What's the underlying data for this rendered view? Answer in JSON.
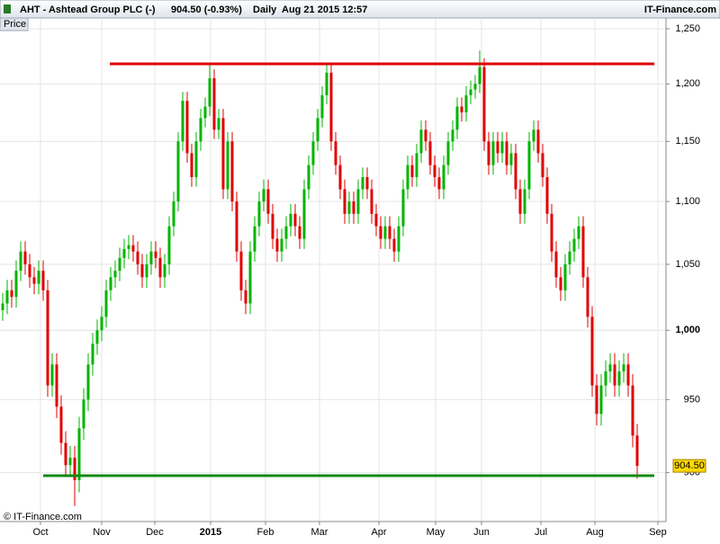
{
  "chart_data": {
    "type": "candlestick",
    "title": "AHT - Ashtead Group PLC (-)",
    "subtitle": "904.50 (-0.93%)",
    "period": "Daily  Aug 21 2015 12:57",
    "brand": "IT-Finance.com",
    "panel_label": "Price",
    "footer": "© IT-Finance.com",
    "log_scale": true,
    "grid": true,
    "up_color": "#00b400",
    "down_color": "#e00000",
    "xlim": [
      -0.6,
      147.4
    ],
    "ylim": [
      868,
      1260
    ],
    "xticks": [
      {
        "value": 8.4,
        "label": "Oct"
      },
      {
        "value": 22,
        "label": "Nov"
      },
      {
        "value": 33.8,
        "label": "Dec"
      },
      {
        "value": 46.2,
        "label": "2015",
        "bold": true
      },
      {
        "value": 58.4,
        "label": "Feb"
      },
      {
        "value": 70.4,
        "label": "Mar"
      },
      {
        "value": 83.6,
        "label": "Apr"
      },
      {
        "value": 96.2,
        "label": "May"
      },
      {
        "value": 106.4,
        "label": "Jun"
      },
      {
        "value": 119.6,
        "label": "Jul"
      },
      {
        "value": 131.6,
        "label": "Aug"
      },
      {
        "value": 145.6,
        "label": "Sep"
      }
    ],
    "yticks": [
      900,
      950,
      {
        "value": 1000,
        "label": "1,000",
        "bold": true
      },
      {
        "value": 1050,
        "label": "1,050"
      },
      {
        "value": 1100,
        "label": "1,100"
      },
      {
        "value": 1150,
        "label": "1,150"
      },
      {
        "value": 1200,
        "label": "1,200"
      },
      {
        "value": 1250,
        "label": "1,250"
      }
    ],
    "last_price": {
      "value": 904.5,
      "label": "904.50"
    },
    "lines": [
      {
        "value": 1218,
        "color": "#e00000",
        "x": [
          23.8,
          144.8
        ]
      },
      {
        "value": 898,
        "color": "#118811",
        "x": [
          9,
          144.8
        ]
      }
    ],
    "candles": {
      "open": [
        1015,
        1020,
        1030,
        1025,
        1045,
        1060,
        1050,
        1040,
        1035,
        1045,
        1030,
        960,
        975,
        945,
        920,
        905,
        910,
        895,
        930,
        950,
        975,
        990,
        1000,
        1010,
        1030,
        1040,
        1045,
        1055,
        1062,
        1065,
        1060,
        1050,
        1040,
        1050,
        1060,
        1055,
        1040,
        1050,
        1080,
        1100,
        1150,
        1185,
        1140,
        1120,
        1150,
        1170,
        1180,
        1205,
        1160,
        1170,
        1110,
        1150,
        1100,
        1060,
        1030,
        1020,
        1060,
        1080,
        1100,
        1110,
        1090,
        1070,
        1060,
        1070,
        1080,
        1090,
        1080,
        1070,
        1110,
        1130,
        1150,
        1170,
        1190,
        1210,
        1150,
        1130,
        1110,
        1090,
        1100,
        1090,
        1110,
        1120,
        1110,
        1090,
        1080,
        1070,
        1080,
        1070,
        1060,
        1080,
        1110,
        1130,
        1120,
        1140,
        1160,
        1150,
        1130,
        1120,
        1110,
        1130,
        1150,
        1160,
        1180,
        1175,
        1190,
        1195,
        1200,
        1215,
        1150,
        1130,
        1150,
        1140,
        1150,
        1130,
        1140,
        1110,
        1090,
        1110,
        1150,
        1160,
        1140,
        1120,
        1090,
        1060,
        1040,
        1030,
        1050,
        1060,
        1070,
        1080,
        1040,
        1010,
        960,
        940,
        960,
        970,
        975,
        960,
        970,
        975,
        960,
        925
      ],
      "high": [
        1028,
        1038,
        1038,
        1053,
        1068,
        1068,
        1058,
        1048,
        1053,
        1053,
        1038,
        983,
        983,
        953,
        928,
        918,
        918,
        938,
        958,
        983,
        998,
        1008,
        1018,
        1038,
        1048,
        1053,
        1063,
        1070,
        1073,
        1073,
        1068,
        1058,
        1058,
        1068,
        1068,
        1063,
        1058,
        1088,
        1108,
        1158,
        1193,
        1193,
        1148,
        1158,
        1178,
        1188,
        1218,
        1213,
        1178,
        1178,
        1158,
        1158,
        1108,
        1068,
        1038,
        1068,
        1088,
        1108,
        1118,
        1118,
        1098,
        1078,
        1078,
        1088,
        1098,
        1098,
        1088,
        1118,
        1138,
        1158,
        1178,
        1198,
        1218,
        1218,
        1158,
        1138,
        1118,
        1108,
        1108,
        1118,
        1128,
        1128,
        1118,
        1098,
        1088,
        1088,
        1088,
        1078,
        1088,
        1118,
        1138,
        1138,
        1148,
        1168,
        1168,
        1158,
        1138,
        1128,
        1138,
        1158,
        1168,
        1188,
        1188,
        1198,
        1203,
        1208,
        1230,
        1223,
        1158,
        1158,
        1158,
        1158,
        1158,
        1148,
        1148,
        1118,
        1118,
        1158,
        1168,
        1168,
        1148,
        1128,
        1098,
        1068,
        1048,
        1058,
        1068,
        1078,
        1088,
        1088,
        1048,
        1018,
        968,
        968,
        978,
        983,
        983,
        978,
        983,
        983,
        968,
        933
      ],
      "low": [
        1007,
        1012,
        1017,
        1017,
        1037,
        1042,
        1032,
        1027,
        1027,
        1022,
        952,
        952,
        937,
        912,
        897,
        897,
        878,
        887,
        922,
        942,
        967,
        982,
        992,
        1002,
        1022,
        1032,
        1037,
        1047,
        1054,
        1052,
        1042,
        1032,
        1032,
        1042,
        1047,
        1032,
        1032,
        1042,
        1072,
        1092,
        1142,
        1132,
        1112,
        1112,
        1142,
        1162,
        1172,
        1152,
        1152,
        1102,
        1102,
        1092,
        1052,
        1022,
        1012,
        1012,
        1052,
        1072,
        1092,
        1082,
        1062,
        1052,
        1052,
        1062,
        1072,
        1072,
        1062,
        1062,
        1102,
        1122,
        1142,
        1162,
        1182,
        1142,
        1122,
        1102,
        1082,
        1082,
        1082,
        1082,
        1102,
        1102,
        1082,
        1072,
        1062,
        1062,
        1062,
        1052,
        1052,
        1072,
        1102,
        1112,
        1112,
        1132,
        1142,
        1122,
        1112,
        1102,
        1102,
        1122,
        1142,
        1152,
        1167,
        1167,
        1182,
        1187,
        1192,
        1142,
        1122,
        1122,
        1132,
        1132,
        1122,
        1122,
        1102,
        1082,
        1082,
        1102,
        1142,
        1132,
        1112,
        1082,
        1052,
        1032,
        1022,
        1022,
        1042,
        1052,
        1062,
        1032,
        1002,
        952,
        932,
        932,
        952,
        962,
        952,
        952,
        962,
        952,
        917,
        896
      ],
      "close": [
        1020,
        1030,
        1025,
        1045,
        1060,
        1050,
        1040,
        1035,
        1045,
        1030,
        960,
        975,
        945,
        920,
        905,
        910,
        895,
        930,
        950,
        975,
        990,
        1000,
        1010,
        1030,
        1040,
        1045,
        1055,
        1062,
        1065,
        1060,
        1050,
        1040,
        1050,
        1060,
        1055,
        1040,
        1050,
        1080,
        1100,
        1150,
        1185,
        1140,
        1120,
        1150,
        1170,
        1180,
        1205,
        1160,
        1170,
        1110,
        1150,
        1100,
        1060,
        1030,
        1020,
        1060,
        1080,
        1100,
        1110,
        1090,
        1070,
        1060,
        1070,
        1080,
        1090,
        1080,
        1070,
        1110,
        1130,
        1150,
        1170,
        1190,
        1210,
        1150,
        1130,
        1110,
        1090,
        1100,
        1090,
        1110,
        1120,
        1110,
        1090,
        1080,
        1070,
        1080,
        1070,
        1060,
        1080,
        1110,
        1130,
        1120,
        1140,
        1160,
        1150,
        1130,
        1120,
        1110,
        1130,
        1150,
        1160,
        1180,
        1175,
        1190,
        1195,
        1200,
        1215,
        1150,
        1130,
        1150,
        1140,
        1150,
        1130,
        1140,
        1110,
        1090,
        1110,
        1150,
        1160,
        1140,
        1120,
        1090,
        1060,
        1040,
        1030,
        1050,
        1060,
        1070,
        1080,
        1040,
        1010,
        960,
        940,
        960,
        970,
        975,
        960,
        970,
        975,
        960,
        925,
        904.5
      ]
    }
  }
}
